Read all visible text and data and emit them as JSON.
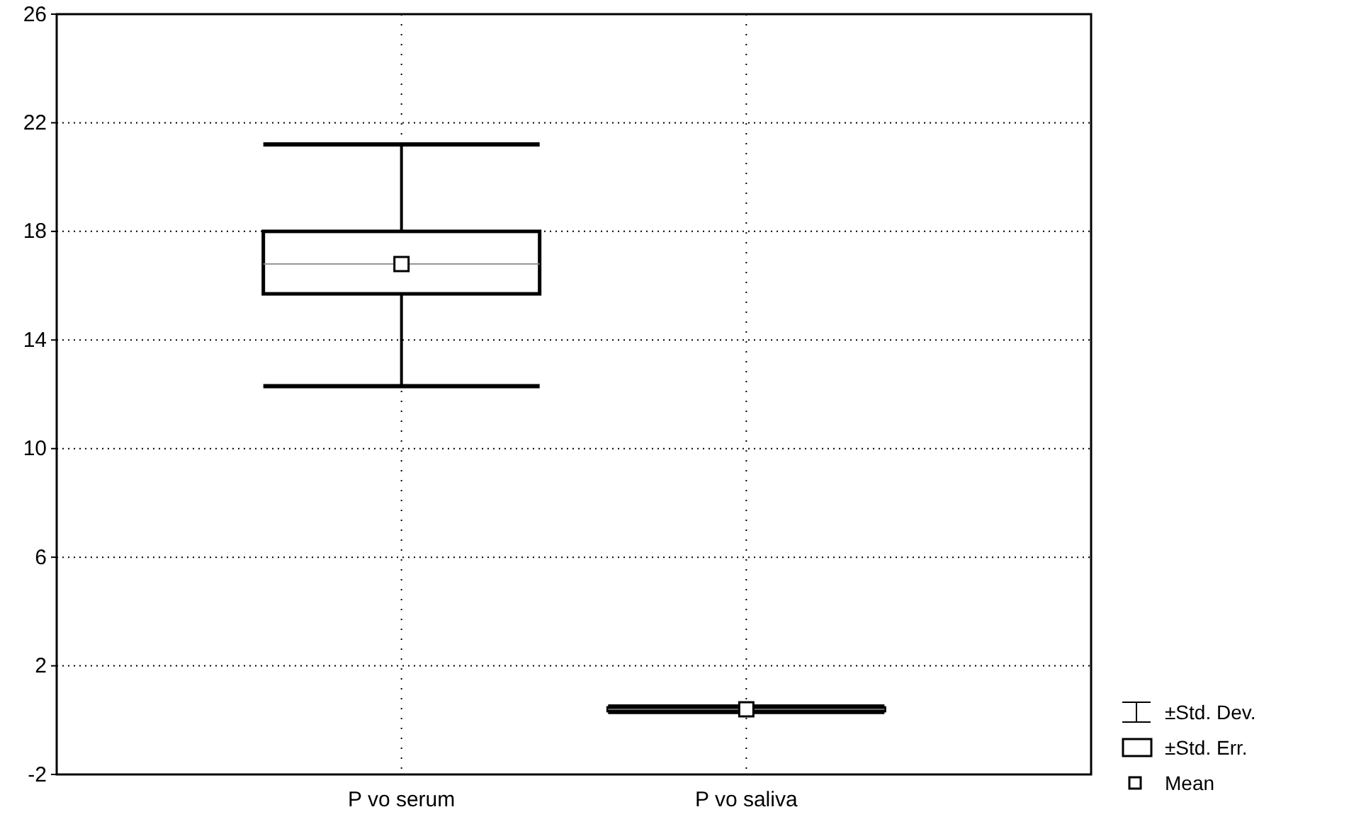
{
  "chart_data": {
    "type": "box",
    "categories": [
      "P vo serum",
      "P vo saliva"
    ],
    "boxes": [
      {
        "low": 12.3,
        "q1": 15.7,
        "median": 16.8,
        "mean": 16.8,
        "q3": 18.0,
        "high": 21.2
      },
      {
        "low": 0.3,
        "q1": 0.35,
        "median": 0.4,
        "mean": 0.4,
        "q3": 0.45,
        "high": 0.5
      }
    ],
    "ylim": [
      -2,
      26
    ],
    "yticks": [
      -2,
      2,
      6,
      10,
      14,
      18,
      22,
      26
    ],
    "grid": true,
    "annotations": [
      "±Std. Dev.",
      "±Std. Err.",
      "Mean"
    ]
  }
}
